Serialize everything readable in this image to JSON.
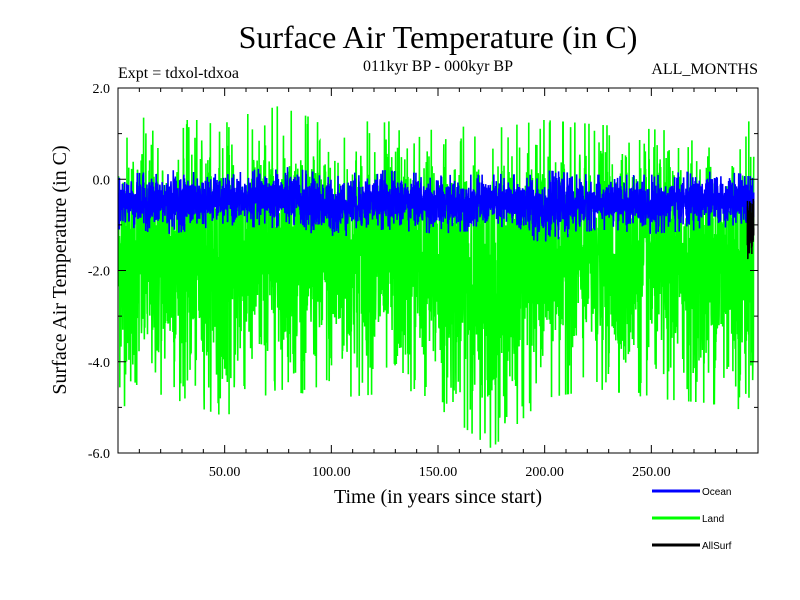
{
  "chart_data": {
    "type": "line",
    "title": "Surface Air Temperature (in C)",
    "subtitle": "011kyr BP - 000kyr BP",
    "experiment": "Expt = tdxol-tdxoa",
    "season": "ALL_MONTHS",
    "xlabel": "Time (in years since start)",
    "ylabel": "Surface Air Temperature (in C)",
    "xlim": [
      0,
      300
    ],
    "ylim": [
      -6.0,
      2.0
    ],
    "x_ticks": [
      50,
      100,
      150,
      200,
      250
    ],
    "x_tick_labels": [
      "50.00",
      "100.00",
      "150.00",
      "200.00",
      "250.00"
    ],
    "y_ticks": [
      -6,
      -4,
      -2,
      0,
      2
    ],
    "y_tick_labels": [
      "-6.0",
      "-4.0",
      "-2.0",
      "0.0",
      "2.0"
    ],
    "grid": false,
    "legend_position": "bottom-right",
    "series": [
      {
        "name": "Land",
        "color": "#00ff00",
        "mean": -1.8,
        "range_approx": [
          -5.9,
          1.6
        ],
        "envelope_x": [
          0,
          25,
          50,
          75,
          100,
          125,
          150,
          175,
          200,
          225,
          250,
          275,
          298
        ],
        "envelope_max": [
          1.4,
          1.3,
          1.3,
          1.6,
          1.2,
          1.3,
          1.2,
          1.1,
          1.3,
          1.2,
          1.1,
          1.0,
          1.3
        ],
        "envelope_min": [
          -5.0,
          -4.8,
          -5.2,
          -4.6,
          -4.8,
          -4.7,
          -5.0,
          -5.9,
          -4.8,
          -4.6,
          -4.8,
          -4.9,
          -5.1
        ]
      },
      {
        "name": "Ocean",
        "color": "#0000ff",
        "mean": -0.5,
        "range_approx": [
          -1.4,
          0.3
        ],
        "envelope_x": [
          0,
          25,
          50,
          75,
          100,
          125,
          150,
          175,
          200,
          225,
          250,
          275,
          298
        ],
        "envelope_max": [
          0.1,
          0.2,
          0.1,
          0.3,
          0.1,
          0.2,
          0.1,
          0.1,
          0.2,
          0.1,
          0.1,
          0.2,
          0.1
        ],
        "envelope_min": [
          -1.1,
          -1.2,
          -1.0,
          -1.1,
          -1.3,
          -1.1,
          -1.2,
          -1.1,
          -1.4,
          -1.1,
          -1.2,
          -1.1,
          -1.0
        ]
      },
      {
        "name": "AllSurf",
        "color": "#000000",
        "mean": -1.0,
        "range_approx": [
          -1.8,
          -0.3
        ],
        "envelope_x": [
          295,
          298
        ],
        "envelope_max": [
          -0.4,
          -0.3
        ],
        "envelope_min": [
          -1.8,
          -1.6
        ]
      }
    ]
  }
}
